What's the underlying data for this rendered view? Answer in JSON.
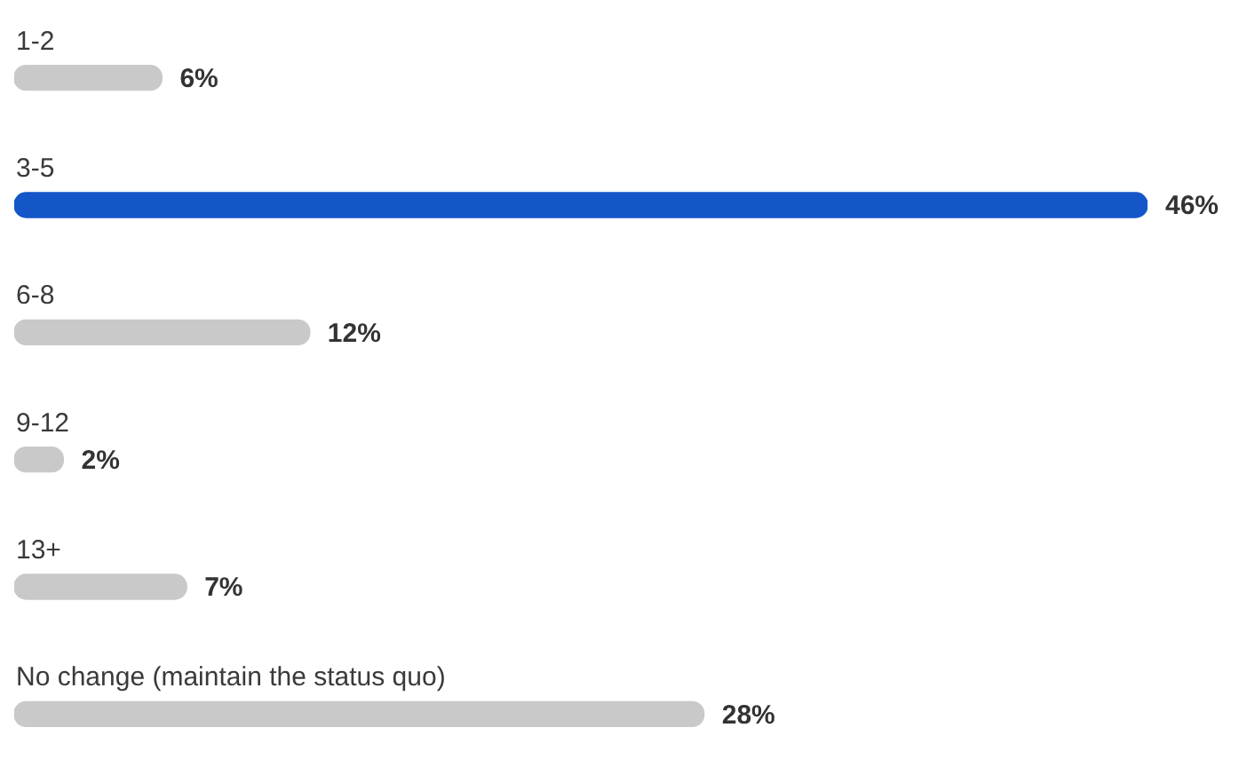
{
  "chart_data": {
    "type": "bar",
    "orientation": "horizontal",
    "categories": [
      "1-2",
      "3-5",
      "6-8",
      "9-12",
      "13+",
      "No change (maintain the status quo)"
    ],
    "values": [
      6,
      46,
      12,
      2,
      7,
      28
    ],
    "value_labels": [
      "6%",
      "46%",
      "12%",
      "2%",
      "7%",
      "28%"
    ],
    "colors": [
      "#c9c9c9",
      "#1456c8",
      "#c9c9c9",
      "#c9c9c9",
      "#c9c9c9",
      "#c9c9c9"
    ]
  }
}
